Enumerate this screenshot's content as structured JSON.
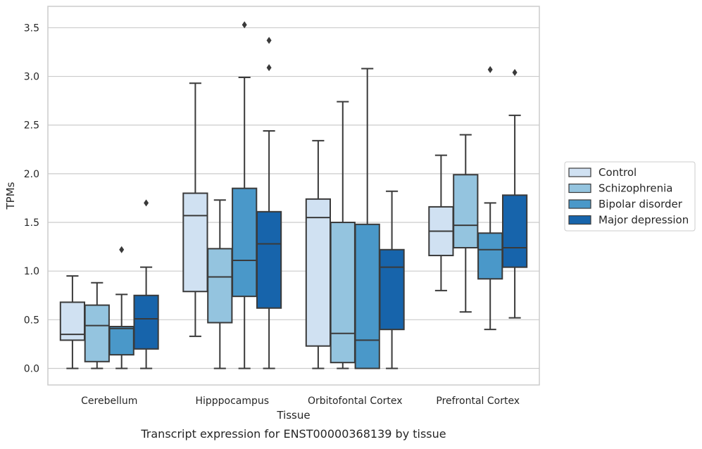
{
  "caption": "Transcript expression for ENST00000368139 by tissue",
  "chart_data": {
    "type": "box",
    "title": "",
    "xlabel": "Tissue",
    "ylabel": "TPMs",
    "ylim": [
      -0.17,
      3.72
    ],
    "yticks": [
      "0.0",
      "0.5",
      "1.0",
      "1.5",
      "2.0",
      "2.5",
      "3.0",
      "3.5"
    ],
    "grid": "horizontal",
    "legend_position": "right",
    "categories": [
      "Cerebellum",
      "Hipppocampus",
      "Orbitofontal Cortex",
      "Prefrontal Cortex"
    ],
    "series": [
      {
        "name": "Control",
        "color": "#d0e1f2",
        "boxes": [
          {
            "whislo": 0.0,
            "q1": 0.29,
            "median": 0.35,
            "q3": 0.68,
            "whishi": 0.95,
            "fliers": []
          },
          {
            "whislo": 0.33,
            "q1": 0.79,
            "median": 1.57,
            "q3": 1.8,
            "whishi": 2.93,
            "fliers": []
          },
          {
            "whislo": 0.0,
            "q1": 0.23,
            "median": 1.55,
            "q3": 1.74,
            "whishi": 2.34,
            "fliers": []
          },
          {
            "whislo": 0.8,
            "q1": 1.16,
            "median": 1.41,
            "q3": 1.66,
            "whishi": 2.19,
            "fliers": []
          }
        ]
      },
      {
        "name": "Schizophrenia",
        "color": "#94c4df",
        "boxes": [
          {
            "whislo": 0.0,
            "q1": 0.07,
            "median": 0.44,
            "q3": 0.65,
            "whishi": 0.88,
            "fliers": []
          },
          {
            "whislo": 0.0,
            "q1": 0.47,
            "median": 0.94,
            "q3": 1.23,
            "whishi": 1.73,
            "fliers": []
          },
          {
            "whislo": 0.0,
            "q1": 0.06,
            "median": 0.36,
            "q3": 1.5,
            "whishi": 2.74,
            "fliers": []
          },
          {
            "whislo": 0.58,
            "q1": 1.24,
            "median": 1.47,
            "q3": 1.99,
            "whishi": 2.4,
            "fliers": []
          }
        ]
      },
      {
        "name": "Bipolar disorder",
        "color": "#4a98c9",
        "boxes": [
          {
            "whislo": 0.0,
            "q1": 0.14,
            "median": 0.41,
            "q3": 0.43,
            "whishi": 0.76,
            "fliers": [
              1.22
            ]
          },
          {
            "whislo": 0.0,
            "q1": 0.74,
            "median": 1.11,
            "q3": 1.85,
            "whishi": 2.99,
            "fliers": [
              3.53
            ]
          },
          {
            "whislo": 0.0,
            "q1": 0.0,
            "median": 0.29,
            "q3": 1.48,
            "whishi": 3.08,
            "fliers": []
          },
          {
            "whislo": 0.4,
            "q1": 0.92,
            "median": 1.22,
            "q3": 1.39,
            "whishi": 1.7,
            "fliers": [
              3.07
            ]
          }
        ]
      },
      {
        "name": "Major depression",
        "color": "#1764ab",
        "boxes": [
          {
            "whislo": 0.0,
            "q1": 0.2,
            "median": 0.51,
            "q3": 0.75,
            "whishi": 1.04,
            "fliers": [
              1.7
            ]
          },
          {
            "whislo": 0.0,
            "q1": 0.62,
            "median": 1.28,
            "q3": 1.61,
            "whishi": 2.44,
            "fliers": [
              3.09,
              3.37
            ]
          },
          {
            "whislo": 0.0,
            "q1": 0.4,
            "median": 1.04,
            "q3": 1.22,
            "whishi": 1.82,
            "fliers": []
          },
          {
            "whislo": 0.52,
            "q1": 1.04,
            "median": 1.24,
            "q3": 1.78,
            "whishi": 2.6,
            "fliers": [
              3.04
            ]
          }
        ]
      }
    ]
  }
}
